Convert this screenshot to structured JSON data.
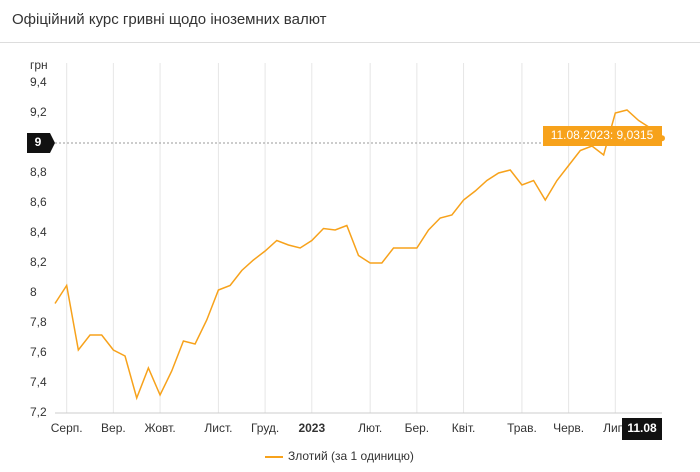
{
  "chart_data": {
    "type": "line",
    "title": "Офіційний курс гривні щодо іноземних валют",
    "y_label": "грн",
    "tooltip": "11.08.2023: 9,0315",
    "categories": [
      null,
      "Серп.",
      null,
      null,
      null,
      "Вер.",
      null,
      null,
      null,
      "Жовт.",
      null,
      null,
      null,
      null,
      "Лист.",
      null,
      null,
      null,
      "Груд.",
      null,
      null,
      null,
      "2023",
      null,
      null,
      null,
      null,
      "Лют.",
      null,
      null,
      null,
      "Бер.",
      null,
      null,
      null,
      "Квіт.",
      null,
      null,
      null,
      null,
      "Трав.",
      null,
      null,
      null,
      "Черв.",
      null,
      null,
      null,
      "Лип.",
      null,
      null,
      null,
      "11.08"
    ],
    "series": [
      {
        "name": "Злотий (за 1 одиницю)",
        "color": "#f7a21b",
        "values": [
          7.93,
          8.05,
          7.62,
          7.72,
          7.72,
          7.62,
          7.58,
          7.3,
          7.5,
          7.32,
          7.48,
          7.68,
          7.66,
          7.82,
          8.02,
          8.05,
          8.15,
          8.22,
          8.28,
          8.35,
          8.32,
          8.3,
          8.35,
          8.43,
          8.42,
          8.45,
          8.25,
          8.2,
          8.2,
          8.3,
          8.3,
          8.3,
          8.42,
          8.5,
          8.52,
          8.62,
          8.68,
          8.75,
          8.8,
          8.82,
          8.72,
          8.75,
          8.62,
          8.75,
          8.85,
          8.95,
          8.98,
          8.92,
          9.2,
          9.22,
          9.15,
          9.1,
          9.0315
        ]
      }
    ],
    "ylim": [
      7.2,
      9.4
    ],
    "yticks": [
      {
        "value": 7.2,
        "label": "7,2"
      },
      {
        "value": 7.4,
        "label": "7,4"
      },
      {
        "value": 7.6,
        "label": "7,6"
      },
      {
        "value": 7.8,
        "label": "7,8"
      },
      8,
      {
        "value": 8.2,
        "label": "8,2"
      },
      {
        "value": 8.4,
        "label": "8,4"
      },
      {
        "value": 8.6,
        "label": "8,6"
      },
      {
        "value": 8.8,
        "label": "8,8"
      },
      9,
      {
        "value": 9.2,
        "label": "9,2"
      },
      {
        "value": 9.4,
        "label": "9,4"
      }
    ],
    "grid": true
  }
}
